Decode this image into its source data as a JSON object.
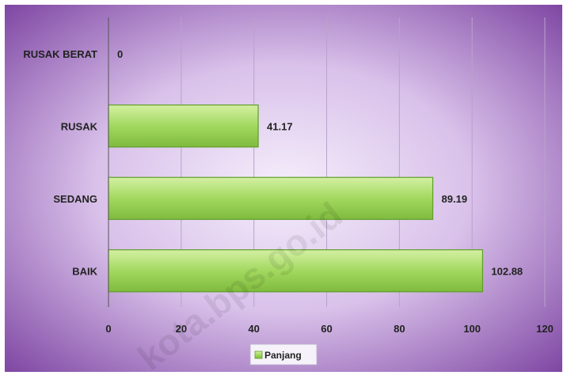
{
  "chart_data": {
    "type": "bar",
    "orientation": "horizontal",
    "title": "",
    "xlabel": "",
    "ylabel": "",
    "categories": [
      "RUSAK BERAT",
      "RUSAK",
      "SEDANG",
      "BAIK"
    ],
    "series": [
      {
        "name": "Panjang",
        "values": [
          0,
          41.17,
          89.19,
          102.88
        ]
      }
    ],
    "value_labels": [
      "0",
      "41.17",
      "89.19",
      "102.88"
    ],
    "xlim": [
      0,
      120
    ],
    "xticks": [
      0,
      20,
      40,
      60,
      80,
      100,
      120
    ],
    "grid": true,
    "legend": {
      "position": "bottom-center"
    },
    "colors": {
      "bar": "#a6d96a",
      "bar_border": "#5f9e2a",
      "bg_center": "#f3ecfa",
      "bg_edge": "#7a3f9e"
    }
  },
  "watermark": "kota.bps.go.id"
}
